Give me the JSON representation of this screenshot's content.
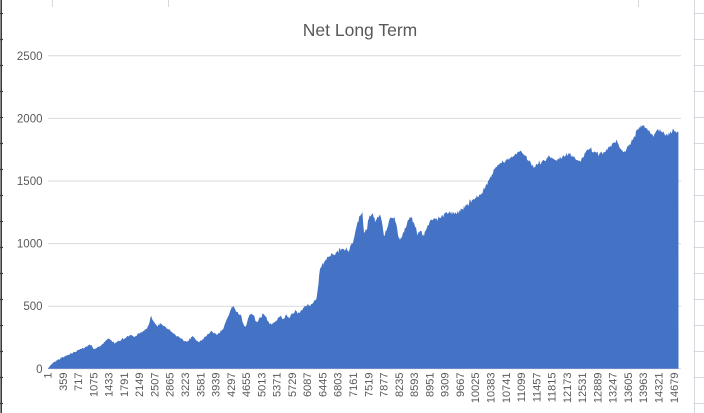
{
  "worksheet": {
    "edge_color": "#3c3c3c",
    "grid_color": "#d6d9de"
  },
  "chart_data": {
    "type": "area",
    "title": "Net Long Term",
    "series_color": "#4472C4",
    "gridline_color": "#d9d9d9",
    "axis_label_color": "#595959",
    "legend": "none",
    "grid": true,
    "ylim": [
      0,
      2500
    ],
    "y_ticks": [
      0,
      500,
      1000,
      1500,
      2000,
      2500
    ],
    "x_range": [
      1,
      14778
    ],
    "x_tick_step": 358,
    "x_tick_labels": [
      "1",
      "359",
      "717",
      "1075",
      "1433",
      "1791",
      "2149",
      "2507",
      "2865",
      "3223",
      "3581",
      "3939",
      "4297",
      "4655",
      "5013",
      "5371",
      "5729",
      "6087",
      "6445",
      "6803",
      "7161",
      "7519",
      "7877",
      "8235",
      "8593",
      "8951",
      "9309",
      "9667",
      "10025",
      "10383",
      "10741",
      "11099",
      "11457",
      "11815",
      "12173",
      "12531",
      "12889",
      "13247",
      "13605",
      "13963",
      "14321",
      "14679"
    ],
    "series": [
      {
        "name": "Net Long Term",
        "points": [
          [
            1,
            5
          ],
          [
            60,
            28
          ],
          [
            140,
            52
          ],
          [
            230,
            72
          ],
          [
            320,
            88
          ],
          [
            420,
            102
          ],
          [
            520,
            118
          ],
          [
            610,
            132
          ],
          [
            700,
            148
          ],
          [
            820,
            165
          ],
          [
            940,
            186
          ],
          [
            1010,
            194
          ],
          [
            1080,
            155
          ],
          [
            1170,
            170
          ],
          [
            1270,
            198
          ],
          [
            1360,
            228
          ],
          [
            1430,
            244
          ],
          [
            1500,
            222
          ],
          [
            1570,
            206
          ],
          [
            1640,
            218
          ],
          [
            1740,
            238
          ],
          [
            1830,
            252
          ],
          [
            1920,
            268
          ],
          [
            2020,
            256
          ],
          [
            2110,
            276
          ],
          [
            2210,
            294
          ],
          [
            2300,
            316
          ],
          [
            2370,
            352
          ],
          [
            2420,
            422
          ],
          [
            2470,
            382
          ],
          [
            2560,
            338
          ],
          [
            2630,
            362
          ],
          [
            2700,
            346
          ],
          [
            2770,
            330
          ],
          [
            2840,
            310
          ],
          [
            2910,
            294
          ],
          [
            3000,
            268
          ],
          [
            3100,
            246
          ],
          [
            3190,
            224
          ],
          [
            3260,
            214
          ],
          [
            3330,
            242
          ],
          [
            3400,
            260
          ],
          [
            3470,
            234
          ],
          [
            3540,
            216
          ],
          [
            3610,
            230
          ],
          [
            3680,
            250
          ],
          [
            3750,
            274
          ],
          [
            3820,
            302
          ],
          [
            3890,
            282
          ],
          [
            3960,
            272
          ],
          [
            4040,
            292
          ],
          [
            4110,
            322
          ],
          [
            4180,
            382
          ],
          [
            4250,
            442
          ],
          [
            4320,
            505
          ],
          [
            4370,
            482
          ],
          [
            4420,
            458
          ],
          [
            4470,
            438
          ],
          [
            4520,
            430
          ],
          [
            4580,
            352
          ],
          [
            4640,
            332
          ],
          [
            4700,
            422
          ],
          [
            4750,
            442
          ],
          [
            4820,
            432
          ],
          [
            4890,
            362
          ],
          [
            4960,
            402
          ],
          [
            5030,
            432
          ],
          [
            5100,
            420
          ],
          [
            5170,
            372
          ],
          [
            5240,
            348
          ],
          [
            5310,
            368
          ],
          [
            5380,
            398
          ],
          [
            5450,
            418
          ],
          [
            5520,
            400
          ],
          [
            5590,
            428
          ],
          [
            5660,
            410
          ],
          [
            5730,
            442
          ],
          [
            5800,
            458
          ],
          [
            5870,
            442
          ],
          [
            5940,
            466
          ],
          [
            6010,
            492
          ],
          [
            6090,
            510
          ],
          [
            6150,
            503
          ],
          [
            6220,
            532
          ],
          [
            6290,
            562
          ],
          [
            6320,
            625
          ],
          [
            6350,
            720
          ],
          [
            6380,
            800
          ],
          [
            6500,
            865
          ],
          [
            6620,
            905
          ],
          [
            6730,
            930
          ],
          [
            6850,
            952
          ],
          [
            6945,
            966
          ],
          [
            7040,
            938
          ],
          [
            7130,
            1000
          ],
          [
            7200,
            1080
          ],
          [
            7250,
            1150
          ],
          [
            7300,
            1220
          ],
          [
            7370,
            1236
          ],
          [
            7410,
            1072
          ],
          [
            7460,
            1100
          ],
          [
            7530,
            1216
          ],
          [
            7600,
            1232
          ],
          [
            7670,
            1180
          ],
          [
            7740,
            1226
          ],
          [
            7810,
            1200
          ],
          [
            7880,
            1062
          ],
          [
            7950,
            1120
          ],
          [
            8020,
            1200
          ],
          [
            8090,
            1230
          ],
          [
            8160,
            1150
          ],
          [
            8230,
            1042
          ],
          [
            8300,
            1062
          ],
          [
            8380,
            1122
          ],
          [
            8450,
            1182
          ],
          [
            8520,
            1212
          ],
          [
            8590,
            1152
          ],
          [
            8660,
            1082
          ],
          [
            8730,
            1102
          ],
          [
            8800,
            1062
          ],
          [
            8870,
            1108
          ],
          [
            8940,
            1162
          ],
          [
            9010,
            1202
          ],
          [
            9150,
            1196
          ],
          [
            9310,
            1240
          ],
          [
            9430,
            1250
          ],
          [
            9550,
            1236
          ],
          [
            9710,
            1282
          ],
          [
            9810,
            1305
          ],
          [
            9900,
            1340
          ],
          [
            10020,
            1362
          ],
          [
            10130,
            1392
          ],
          [
            10250,
            1445
          ],
          [
            10320,
            1495
          ],
          [
            10390,
            1540
          ],
          [
            10490,
            1605
          ],
          [
            10600,
            1638
          ],
          [
            10720,
            1662
          ],
          [
            10840,
            1682
          ],
          [
            10960,
            1702
          ],
          [
            11070,
            1748
          ],
          [
            11170,
            1706
          ],
          [
            11260,
            1666
          ],
          [
            11380,
            1608
          ],
          [
            11490,
            1646
          ],
          [
            11610,
            1662
          ],
          [
            11730,
            1686
          ],
          [
            11850,
            1676
          ],
          [
            11960,
            1670
          ],
          [
            12080,
            1692
          ],
          [
            12200,
            1722
          ],
          [
            12290,
            1702
          ],
          [
            12390,
            1666
          ],
          [
            12480,
            1662
          ],
          [
            12600,
            1726
          ],
          [
            12690,
            1766
          ],
          [
            12790,
            1732
          ],
          [
            12880,
            1716
          ],
          [
            12970,
            1712
          ],
          [
            13070,
            1742
          ],
          [
            13160,
            1772
          ],
          [
            13250,
            1802
          ],
          [
            13320,
            1826
          ],
          [
            13400,
            1776
          ],
          [
            13470,
            1726
          ],
          [
            13540,
            1746
          ],
          [
            13610,
            1776
          ],
          [
            13680,
            1816
          ],
          [
            13750,
            1862
          ],
          [
            13820,
            1912
          ],
          [
            13890,
            1936
          ],
          [
            13960,
            1950
          ],
          [
            14030,
            1922
          ],
          [
            14100,
            1892
          ],
          [
            14170,
            1866
          ],
          [
            14240,
            1892
          ],
          [
            14310,
            1916
          ],
          [
            14380,
            1896
          ],
          [
            14450,
            1876
          ],
          [
            14520,
            1860
          ],
          [
            14590,
            1886
          ],
          [
            14660,
            1902
          ],
          [
            14730,
            1886
          ],
          [
            14778,
            1870
          ]
        ]
      }
    ]
  }
}
